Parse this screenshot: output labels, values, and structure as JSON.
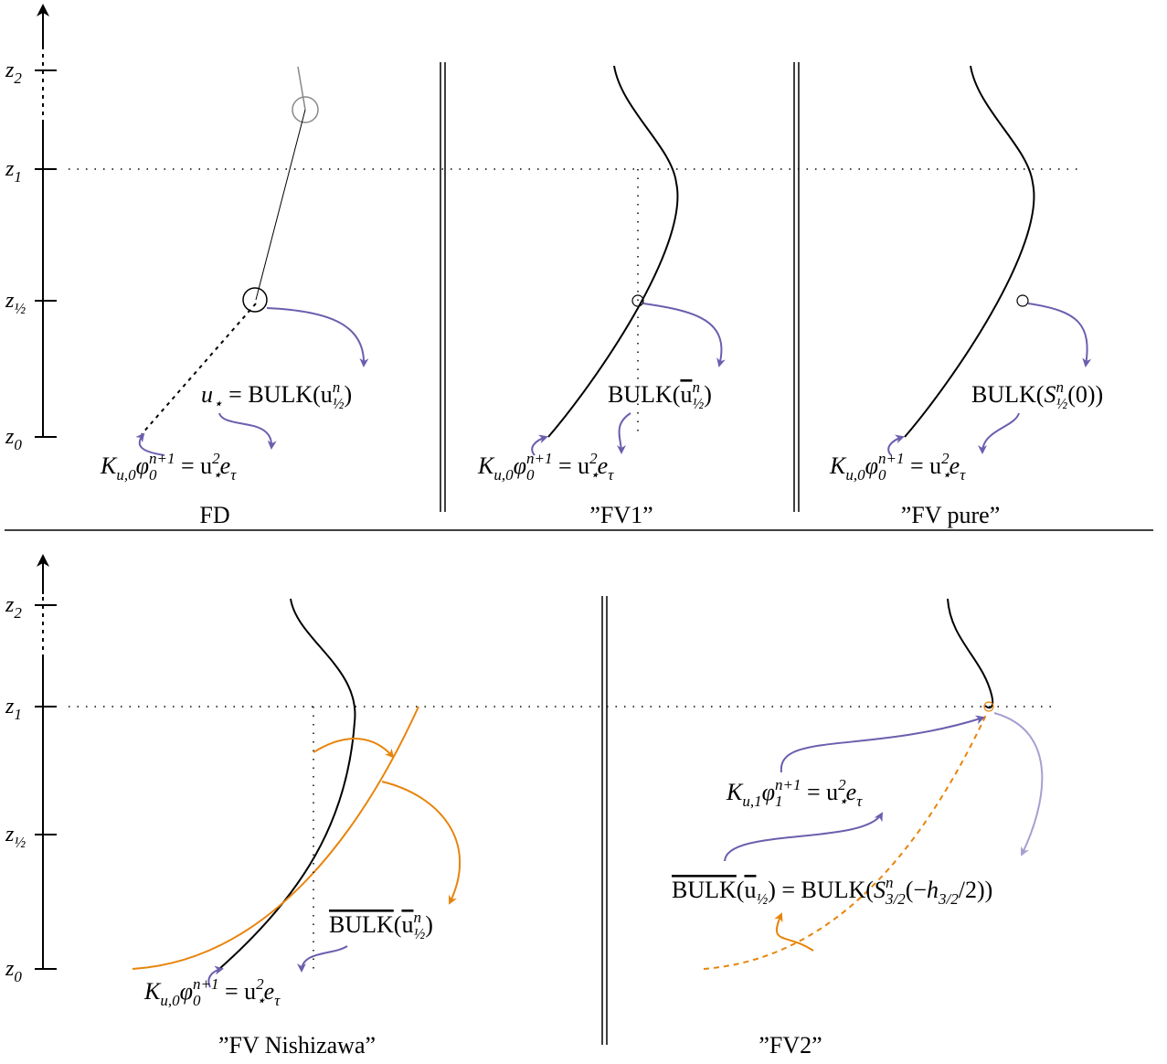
{
  "axis_labels": [
    [
      "z",
      "2"
    ],
    [
      "z",
      "1"
    ],
    [
      "z",
      "½"
    ],
    [
      "z",
      "0"
    ]
  ],
  "panels": [
    {
      "label": "FD",
      "bulk": [
        "u",
        "⋆",
        " = BULK(u",
        "n",
        "½",
        ")"
      ],
      "flux": [
        "K",
        "u,0",
        "φ",
        "0",
        "n+1",
        " = u",
        "⋆",
        "2",
        "e",
        "τ"
      ]
    },
    {
      "label": "”FV1”",
      "bulk": [
        "BULK(",
        "u",
        "n",
        "½",
        ")"
      ],
      "flux": [
        "K",
        "u,0",
        "φ",
        "0",
        "n+1",
        " = u",
        "⋆",
        "2",
        "e",
        "τ"
      ]
    },
    {
      "label": "”FV pure”",
      "bulk": [
        "BULK(",
        "S",
        "n",
        "½",
        "(0))"
      ],
      "flux": [
        "K",
        "u,0",
        "φ",
        "0",
        "n+1",
        " = u",
        "⋆",
        "2",
        "e",
        "τ"
      ]
    },
    {
      "label": "”FV Nishizawa”",
      "bulk": [
        "BULK",
        "(",
        "u",
        "n",
        "½",
        ")"
      ],
      "flux": [
        "K",
        "u,0",
        "φ",
        "0",
        "n+1",
        " = u",
        "⋆",
        "2",
        "e",
        "τ"
      ]
    },
    {
      "label": "”FV2”",
      "flux": [
        "K",
        "u,1",
        "φ",
        "1",
        "n+1",
        " = u",
        "⋆",
        "2",
        "e",
        "τ"
      ],
      "bulk": [
        "BULK",
        "(",
        "u",
        "½",
        ") = BULK(",
        "S",
        "n",
        "3/2",
        "(−",
        "h",
        "3/2",
        "/2))"
      ]
    }
  ]
}
